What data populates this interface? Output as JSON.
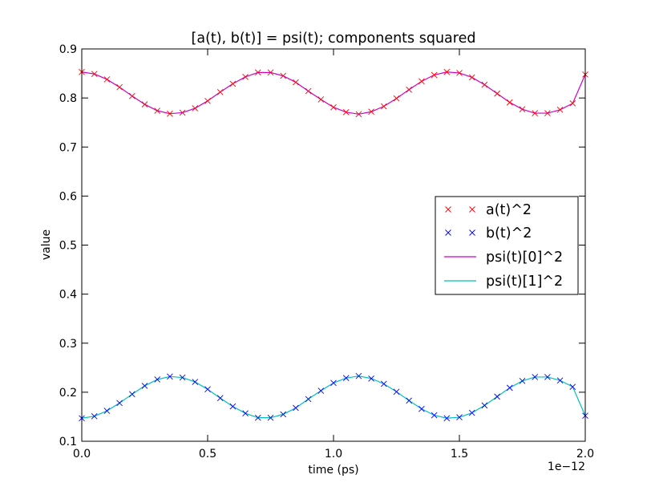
{
  "chart_data": {
    "type": "line",
    "title": "[a(t), b(t)] = psi(t); components squared",
    "xlabel": "time (ps)",
    "ylabel": "value",
    "x_offset_text": "1e−12",
    "xlim": [
      0.0,
      2.0
    ],
    "ylim": [
      0.1,
      0.9
    ],
    "x_ticks": [
      0.0,
      0.5,
      1.0,
      1.5,
      2.0
    ],
    "x_tick_labels": [
      "0.0",
      "0.5",
      "1.0",
      "1.5",
      "2.0"
    ],
    "y_ticks": [
      0.1,
      0.2,
      0.3,
      0.4,
      0.5,
      0.6,
      0.7,
      0.8,
      0.9
    ],
    "y_tick_labels": [
      "0.1",
      "0.2",
      "0.3",
      "0.4",
      "0.5",
      "0.6",
      "0.7",
      "0.8",
      "0.9"
    ],
    "grid": false,
    "legend_position": "center-right",
    "x": [
      0.0,
      0.05,
      0.1,
      0.15,
      0.2,
      0.25,
      0.3,
      0.35,
      0.4,
      0.45,
      0.5,
      0.55,
      0.6,
      0.65,
      0.7,
      0.75,
      0.8,
      0.85,
      0.9,
      0.95,
      1.0,
      1.05,
      1.1,
      1.15,
      1.2,
      1.25,
      1.3,
      1.35,
      1.4,
      1.45,
      1.5,
      1.55,
      1.6,
      1.65,
      1.7,
      1.75,
      1.8,
      1.85,
      1.9,
      1.95,
      2.0
    ],
    "series": [
      {
        "name": "a(t)^2",
        "style": "marker-x",
        "color": "#ff0000",
        "values": [
          0.853,
          0.849,
          0.838,
          0.822,
          0.804,
          0.787,
          0.774,
          0.768,
          0.77,
          0.779,
          0.794,
          0.812,
          0.829,
          0.843,
          0.852,
          0.852,
          0.845,
          0.832,
          0.814,
          0.797,
          0.781,
          0.771,
          0.767,
          0.772,
          0.783,
          0.799,
          0.817,
          0.834,
          0.847,
          0.853,
          0.851,
          0.842,
          0.827,
          0.809,
          0.791,
          0.777,
          0.769,
          0.769,
          0.776,
          0.789,
          0.848
        ]
      },
      {
        "name": "b(t)^2",
        "style": "marker-x",
        "color": "#0000ff",
        "values": [
          0.147,
          0.151,
          0.162,
          0.178,
          0.196,
          0.213,
          0.226,
          0.232,
          0.23,
          0.221,
          0.206,
          0.188,
          0.171,
          0.157,
          0.148,
          0.148,
          0.155,
          0.168,
          0.186,
          0.203,
          0.219,
          0.229,
          0.233,
          0.228,
          0.217,
          0.201,
          0.183,
          0.166,
          0.153,
          0.147,
          0.149,
          0.158,
          0.173,
          0.191,
          0.209,
          0.223,
          0.231,
          0.231,
          0.224,
          0.211,
          0.152
        ]
      },
      {
        "name": "psi(t)[0]^2",
        "style": "line",
        "color": "#cc00cc",
        "values": [
          0.853,
          0.849,
          0.838,
          0.822,
          0.804,
          0.787,
          0.774,
          0.768,
          0.77,
          0.779,
          0.794,
          0.812,
          0.829,
          0.843,
          0.852,
          0.852,
          0.845,
          0.832,
          0.814,
          0.797,
          0.781,
          0.771,
          0.767,
          0.772,
          0.783,
          0.799,
          0.817,
          0.834,
          0.847,
          0.853,
          0.851,
          0.842,
          0.827,
          0.809,
          0.791,
          0.777,
          0.769,
          0.769,
          0.776,
          0.789,
          0.848
        ]
      },
      {
        "name": "psi(t)[1]^2",
        "style": "line",
        "color": "#00bfbf",
        "values": [
          0.147,
          0.151,
          0.162,
          0.178,
          0.196,
          0.213,
          0.226,
          0.232,
          0.23,
          0.221,
          0.206,
          0.188,
          0.171,
          0.157,
          0.148,
          0.148,
          0.155,
          0.168,
          0.186,
          0.203,
          0.219,
          0.229,
          0.233,
          0.228,
          0.217,
          0.201,
          0.183,
          0.166,
          0.153,
          0.147,
          0.149,
          0.158,
          0.173,
          0.191,
          0.209,
          0.223,
          0.231,
          0.231,
          0.224,
          0.211,
          0.152
        ]
      }
    ]
  }
}
